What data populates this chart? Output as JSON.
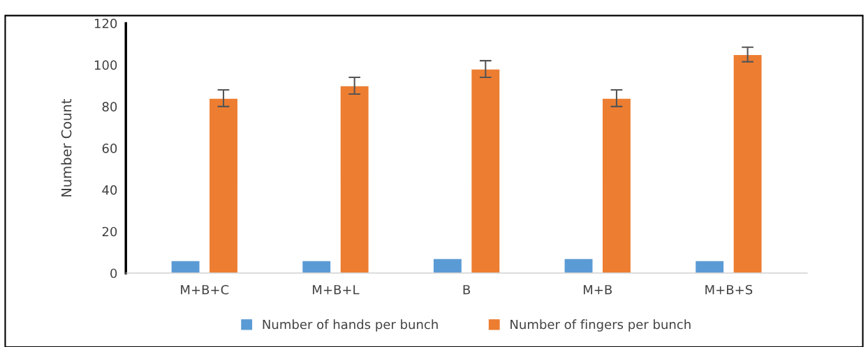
{
  "chart_data": {
    "type": "bar",
    "ylabel": "Number Count",
    "categories": [
      "M+B+C",
      "M+B+L",
      "B",
      "M+B",
      "M+B+S"
    ],
    "series": [
      {
        "name": "Number of hands per bunch",
        "color": "#5b9bd5",
        "values": [
          6,
          6,
          7,
          7,
          6
        ]
      },
      {
        "name": "Number of fingers per bunch",
        "color": "#ed7d31",
        "values": [
          84,
          90,
          98,
          84,
          105
        ],
        "errors": [
          4,
          4,
          4,
          4,
          3.5
        ]
      }
    ],
    "ylim": [
      0,
      120
    ],
    "yticks": [
      0,
      20,
      40,
      60,
      80,
      100,
      120
    ],
    "grid": false,
    "legend": "bottom"
  }
}
